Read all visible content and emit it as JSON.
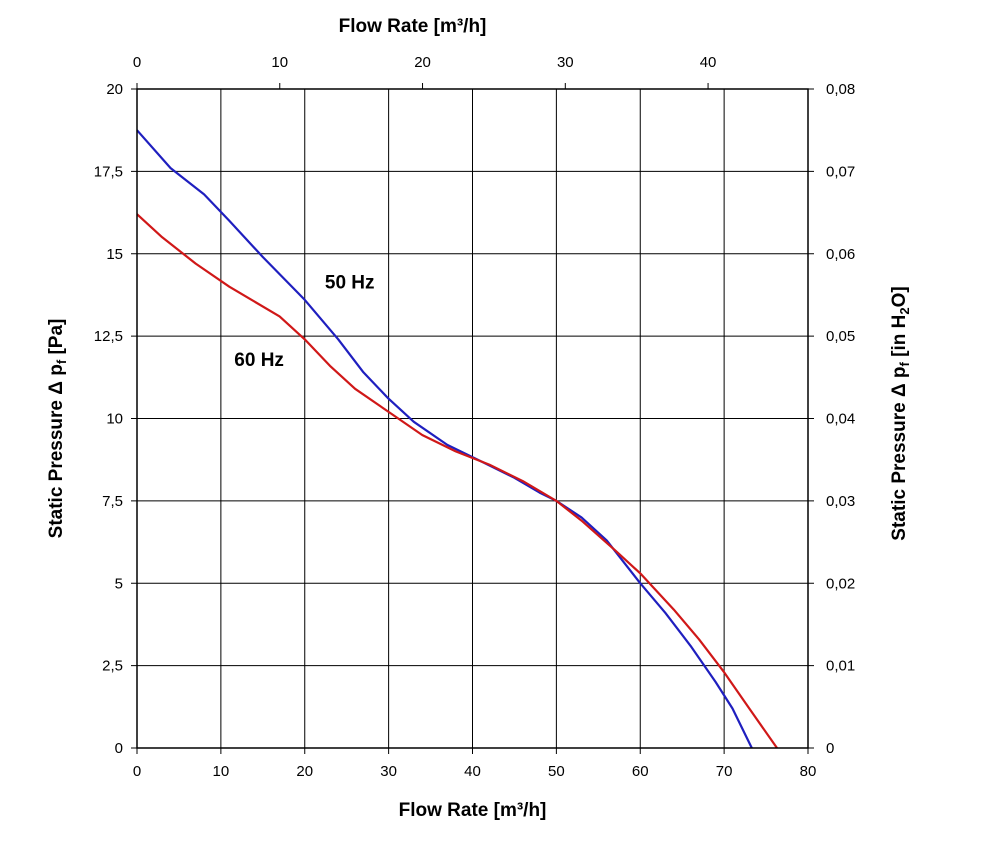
{
  "chart_data": {
    "type": "line",
    "title": "",
    "xlabel": "Flow Rate [m³/h]",
    "x2label": "Flow Rate [m³/h]",
    "ylabel_left": {
      "base": "Static Pressure Δ p",
      "sub": "f",
      "rest": " [Pa]"
    },
    "ylabel_right": {
      "base": "Static Pressure Δ p",
      "sub": "f",
      "rest": " [in H",
      "sub2": "2",
      "rest2": "O]"
    },
    "xlim": [
      0,
      80
    ],
    "x2lim": [
      0,
      47
    ],
    "ylim": [
      0,
      20
    ],
    "y2lim": [
      0,
      0.08
    ],
    "x_ticks": [
      "0",
      "10",
      "20",
      "30",
      "40",
      "50",
      "60",
      "70",
      "80"
    ],
    "x2_ticks": [
      "0",
      "10",
      "20",
      "30",
      "40"
    ],
    "x2_tick_values": [
      0,
      10,
      20,
      30,
      40
    ],
    "y_ticks": [
      "0",
      "2,5",
      "5",
      "7,5",
      "10",
      "12,5",
      "15",
      "17,5",
      "20"
    ],
    "y2_ticks": [
      "0",
      "0,01",
      "0,02",
      "0,03",
      "0,04",
      "0,05",
      "0,06",
      "0,07",
      "0,08"
    ],
    "grid": true,
    "series": [
      {
        "name": "50 Hz",
        "color": "#1f1fbf",
        "x": [
          0,
          4,
          8,
          11,
          15,
          20,
          24,
          27,
          30,
          33,
          37,
          41,
          45,
          48,
          50,
          53,
          56,
          60,
          63,
          66,
          69,
          71,
          73.3
        ],
        "y": [
          18.75,
          17.6,
          16.8,
          16.0,
          14.9,
          13.6,
          12.4,
          11.4,
          10.6,
          9.9,
          9.2,
          8.7,
          8.2,
          7.75,
          7.5,
          7.0,
          6.3,
          5.0,
          4.1,
          3.1,
          2.0,
          1.2,
          0
        ]
      },
      {
        "name": "60 Hz",
        "color": "#d01818",
        "x": [
          0,
          3,
          7,
          11,
          13,
          17,
          20,
          23,
          26,
          30,
          34,
          38,
          42,
          46,
          50,
          53,
          57,
          60,
          64,
          67,
          70,
          73,
          76.3
        ],
        "y": [
          16.2,
          15.5,
          14.7,
          14.0,
          13.7,
          13.1,
          12.4,
          11.6,
          10.9,
          10.2,
          9.5,
          9.0,
          8.6,
          8.1,
          7.5,
          6.9,
          6.0,
          5.3,
          4.2,
          3.3,
          2.3,
          1.2,
          0
        ]
      }
    ],
    "annotations": [
      {
        "text": "50 Hz",
        "x": 22.4,
        "y": 13.95
      },
      {
        "text": "60 Hz",
        "x": 11.6,
        "y": 11.6
      }
    ]
  }
}
